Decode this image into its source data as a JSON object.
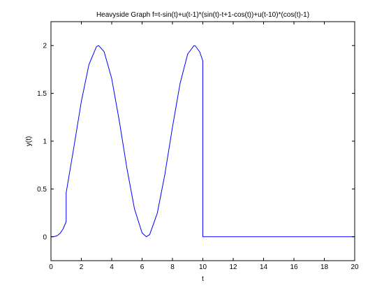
{
  "chart_data": {
    "type": "line",
    "title": "Heavyside Graph f=t-sin(t)+u(t-1)*(sin(t)-t+1-cos(t))+u(t-10)*(cos(t)-1)",
    "xlabel": "t",
    "ylabel": "y(t)",
    "xlim": [
      0,
      20
    ],
    "ylim": [
      -0.25,
      2.25
    ],
    "xticks": [
      0,
      2,
      4,
      6,
      8,
      10,
      12,
      14,
      16,
      18,
      20
    ],
    "yticks": [
      0,
      0.5,
      1,
      1.5,
      2
    ],
    "ytick_labels": [
      "0",
      "0.5",
      "1",
      "1.5",
      "2"
    ],
    "grid": false,
    "series": [
      {
        "color": "#0000ff",
        "x": [
          0,
          0.2,
          0.4,
          0.6,
          0.8,
          1.0,
          1.0,
          1.5,
          2.0,
          2.5,
          3.0,
          3.14,
          3.5,
          4.0,
          4.5,
          5.0,
          5.5,
          6.0,
          6.28,
          6.5,
          7.0,
          7.5,
          8.0,
          8.5,
          9.0,
          9.42,
          9.5,
          9.8,
          10.0,
          10.0,
          10.2,
          11,
          12,
          14,
          16,
          18,
          20
        ],
        "y": [
          0,
          0.0013,
          0.0106,
          0.0354,
          0.0826,
          0.1585,
          0.4597,
          0.929,
          1.416,
          1.801,
          1.99,
          2.0,
          1.936,
          1.654,
          1.211,
          0.716,
          0.291,
          0.04,
          0.0,
          0.023,
          0.246,
          0.653,
          1.146,
          1.602,
          1.911,
          2.0,
          1.997,
          1.932,
          1.839,
          0.0,
          0.0,
          0.0,
          0.0,
          0.0,
          0.0,
          0.0,
          0.0
        ]
      }
    ]
  }
}
